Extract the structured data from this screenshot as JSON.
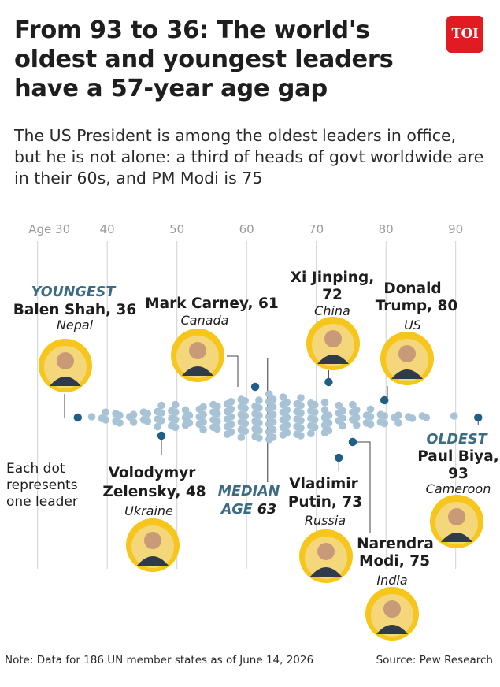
{
  "header": {
    "title": "From 93 to 36: The world's oldest and youngest leaders have a 57-year age gap",
    "subtitle": "The US President is among the oldest leaders in office, but he is not alone: a third of heads of govt worldwide are in their 60s, and PM Modi is 75",
    "logo_text": "TOI"
  },
  "chart_data": {
    "type": "scatter",
    "subtype": "beeswarm",
    "xlabel": "Age",
    "x_ticks": [
      30,
      40,
      50,
      60,
      70,
      80,
      90
    ],
    "x_tick_labels": [
      "Age 30",
      "40",
      "50",
      "60",
      "70",
      "80",
      "90"
    ],
    "xlim": [
      28,
      96
    ],
    "n_points": 186,
    "legend_note": "Each dot represents one leader",
    "median": {
      "prefix": "MEDIAN",
      "label": "AGE",
      "value": 63
    },
    "leaders": [
      {
        "name": "Balen Shah",
        "age": 36,
        "country": "Nepal",
        "tag": "YOUNGEST",
        "title": "Balen Shah, 36"
      },
      {
        "name": "Volodymyr Zelensky",
        "age": 48,
        "country": "Ukraine",
        "title1": "Volodymyr",
        "title2": "Zelensky, 48"
      },
      {
        "name": "Mark Carney",
        "age": 61,
        "country": "Canada",
        "title": "Mark Carney, 61"
      },
      {
        "name": "Xi Jinping",
        "age": 72,
        "country": "China",
        "title1": "Xi Jinping,",
        "title2": "72"
      },
      {
        "name": "Vladimir Putin",
        "age": 73,
        "country": "Russia",
        "title1": "Vladimir",
        "title2": "Putin, 73"
      },
      {
        "name": "Narendra Modi",
        "age": 75,
        "country": "India",
        "title1": "Narendra",
        "title2": "Modi, 75"
      },
      {
        "name": "Donald Trump",
        "age": 80,
        "country": "US",
        "title1": "Donald",
        "title2": "Trump, 80"
      },
      {
        "name": "Paul Biya",
        "age": 93,
        "country": "Cameroon",
        "tag": "OLDEST",
        "title1": "Paul Biya,",
        "title2": "93"
      }
    ]
  },
  "footer": {
    "note": "Note: Data for 186 UN member states as of June 14, 2026",
    "source": "Source: Pew Research"
  },
  "colors": {
    "dot": "#a8c2d6",
    "highlight": "#1f5f86",
    "accent_label": "#3c6b86",
    "photo_ring": "#f6c61c",
    "grid": "#d0d0d0",
    "logo": "#e11b22"
  }
}
